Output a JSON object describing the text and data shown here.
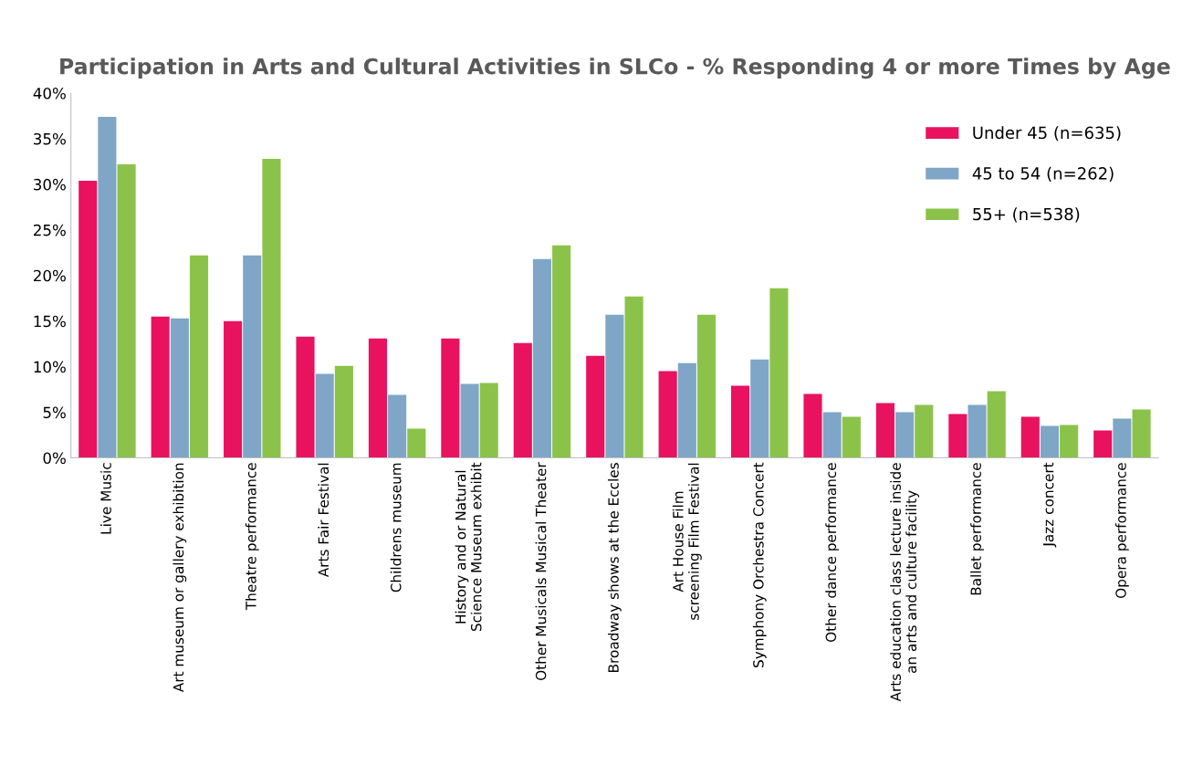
{
  "chart_data": {
    "type": "bar",
    "title": "Participation in Arts and Cultural Activities in SLCo - % Responding 4 or more Times by Age",
    "categories": [
      "Live Music",
      "Art museum or gallery exhibition",
      "Theatre performance",
      "Arts Fair Festival",
      "Childrens museum",
      "History and or Natural Science Museum exhibit",
      "Other Musicals Musical Theater",
      "Broadway shows at the Eccles",
      "Art House Film screening Film Festival",
      "Symphony Orchestra Concert",
      "Other dance performance",
      "Arts education class lecture inside an arts and culture facility",
      "Ballet performance",
      "Jazz concert",
      "Opera performance"
    ],
    "series": [
      {
        "name": "Under 45 (n=635)",
        "color": "#e8125f",
        "values": [
          30.4,
          15.5,
          15.0,
          13.3,
          13.1,
          13.1,
          12.6,
          11.2,
          9.5,
          7.9,
          7.0,
          6.0,
          4.8,
          4.5,
          3.0
        ]
      },
      {
        "name": "45 to 54 (n=262)",
        "color": "#7fa6c6",
        "values": [
          37.4,
          15.3,
          22.2,
          9.2,
          6.9,
          8.1,
          21.8,
          15.7,
          10.4,
          10.8,
          5.0,
          5.0,
          5.8,
          3.5,
          4.3
        ]
      },
      {
        "name": "55+ (n=538)",
        "color": "#8bc34a",
        "values": [
          32.2,
          22.2,
          32.8,
          10.1,
          3.2,
          8.2,
          23.3,
          17.7,
          15.7,
          18.6,
          4.5,
          5.8,
          7.3,
          3.6,
          5.3
        ]
      }
    ],
    "ylim": [
      0,
      40
    ],
    "yticks": [
      {
        "value": 0,
        "label": "0%"
      },
      {
        "value": 5,
        "label": "5%"
      },
      {
        "value": 10,
        "label": "10%"
      },
      {
        "value": 15,
        "label": "15%"
      },
      {
        "value": 20,
        "label": "20%"
      },
      {
        "value": 25,
        "label": "25%"
      },
      {
        "value": 30,
        "label": "30%"
      },
      {
        "value": 35,
        "label": "35%"
      },
      {
        "value": 40,
        "label": "40%"
      }
    ],
    "grid": false,
    "legend": "top right"
  }
}
